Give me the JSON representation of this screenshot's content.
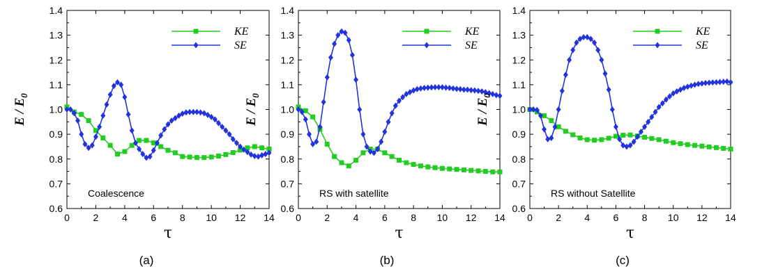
{
  "chart_data": [
    {
      "type": "line",
      "panel_label": "(a)",
      "annotation": "Coalescence",
      "xlabel": "τ",
      "ylabel": "E / E0",
      "xlim": [
        0,
        14
      ],
      "ylim": [
        0.6,
        1.4
      ],
      "xticks": [
        "0",
        "2",
        "4",
        "6",
        "8",
        "10",
        "12",
        "14"
      ],
      "yticks": [
        "0.6",
        "0.7",
        "0.8",
        "0.9",
        "1.0",
        "1.1",
        "1.2",
        "1.3",
        "1.4"
      ],
      "legend_position": "top-right",
      "grid": false,
      "series": [
        {
          "name": "KE",
          "color": "#22cc22",
          "marker": "square",
          "x": [
            0,
            0.5,
            1,
            1.5,
            2,
            2.5,
            3,
            3.5,
            4,
            4.5,
            5,
            5.5,
            6,
            6.5,
            7,
            7.5,
            8,
            8.5,
            9,
            9.5,
            10,
            10.5,
            11,
            11.5,
            12,
            12.5,
            13,
            13.5,
            14
          ],
          "y": [
            1.01,
            0.99,
            0.98,
            0.955,
            0.915,
            0.885,
            0.855,
            0.82,
            0.83,
            0.855,
            0.875,
            0.875,
            0.865,
            0.85,
            0.835,
            0.825,
            0.81,
            0.808,
            0.806,
            0.806,
            0.808,
            0.812,
            0.818,
            0.826,
            0.836,
            0.845,
            0.85,
            0.845,
            0.84
          ]
        },
        {
          "name": "SE",
          "color": "#2233dd",
          "marker": "diamond",
          "x": [
            0,
            0.25,
            0.5,
            0.75,
            1,
            1.25,
            1.5,
            1.75,
            2,
            2.25,
            2.5,
            2.75,
            3,
            3.25,
            3.5,
            3.75,
            4,
            4.25,
            4.5,
            4.75,
            5,
            5.25,
            5.5,
            5.75,
            6,
            6.25,
            6.5,
            6.75,
            7,
            7.25,
            7.5,
            7.75,
            8,
            8.25,
            8.5,
            8.75,
            9,
            9.25,
            9.5,
            9.75,
            10,
            10.25,
            10.5,
            10.75,
            11,
            11.25,
            11.5,
            11.75,
            12,
            12.25,
            12.5,
            12.75,
            13,
            13.25,
            13.5,
            13.75,
            14
          ],
          "y": [
            1.0,
            1.0,
            0.985,
            0.955,
            0.9,
            0.86,
            0.845,
            0.855,
            0.89,
            0.93,
            0.975,
            1.02,
            1.06,
            1.095,
            1.11,
            1.1,
            1.05,
            0.98,
            0.915,
            0.865,
            0.84,
            0.82,
            0.805,
            0.81,
            0.835,
            0.865,
            0.895,
            0.92,
            0.94,
            0.955,
            0.965,
            0.975,
            0.983,
            0.988,
            0.99,
            0.99,
            0.99,
            0.988,
            0.985,
            0.978,
            0.97,
            0.96,
            0.945,
            0.93,
            0.915,
            0.9,
            0.88,
            0.865,
            0.85,
            0.838,
            0.828,
            0.818,
            0.812,
            0.81,
            0.815,
            0.82,
            0.825
          ]
        }
      ]
    },
    {
      "type": "line",
      "panel_label": "(b)",
      "annotation": "RS with satellite",
      "xlabel": "τ",
      "ylabel": "E / E0",
      "xlim": [
        0,
        14
      ],
      "ylim": [
        0.6,
        1.4
      ],
      "xticks": [
        "0",
        "2",
        "4",
        "6",
        "8",
        "10",
        "12",
        "14"
      ],
      "yticks": [
        "0.6",
        "0.7",
        "0.8",
        "0.9",
        "1.0",
        "1.1",
        "1.2",
        "1.3",
        "1.4"
      ],
      "legend_position": "top-right",
      "grid": false,
      "series": [
        {
          "name": "KE",
          "color": "#22cc22",
          "marker": "square",
          "x": [
            0,
            0.5,
            1,
            1.5,
            2,
            2.5,
            3,
            3.5,
            4,
            4.5,
            5,
            5.5,
            6,
            6.5,
            7,
            7.5,
            8,
            8.5,
            9,
            9.5,
            10,
            10.5,
            11,
            11.5,
            12,
            12.5,
            13,
            13.5,
            14
          ],
          "y": [
            1.01,
            0.995,
            0.97,
            0.92,
            0.86,
            0.81,
            0.785,
            0.772,
            0.795,
            0.825,
            0.84,
            0.84,
            0.825,
            0.81,
            0.795,
            0.785,
            0.778,
            0.772,
            0.768,
            0.765,
            0.762,
            0.76,
            0.758,
            0.756,
            0.754,
            0.752,
            0.75,
            0.748,
            0.748
          ]
        },
        {
          "name": "SE",
          "color": "#2233dd",
          "marker": "diamond",
          "x": [
            0,
            0.25,
            0.5,
            0.75,
            1,
            1.25,
            1.5,
            1.75,
            2,
            2.25,
            2.5,
            2.75,
            3,
            3.25,
            3.5,
            3.75,
            4,
            4.25,
            4.5,
            4.75,
            5,
            5.25,
            5.5,
            5.75,
            6,
            6.25,
            6.5,
            6.75,
            7,
            7.25,
            7.5,
            7.75,
            8,
            8.25,
            8.5,
            8.75,
            9,
            9.25,
            9.5,
            9.75,
            10,
            10.25,
            10.5,
            10.75,
            11,
            11.25,
            11.5,
            11.75,
            12,
            12.25,
            12.5,
            12.75,
            13,
            13.25,
            13.5,
            13.75,
            14
          ],
          "y": [
            1.0,
            0.99,
            0.96,
            0.9,
            0.86,
            0.87,
            0.93,
            1.03,
            1.13,
            1.21,
            1.265,
            1.3,
            1.315,
            1.31,
            1.28,
            1.22,
            1.12,
            1.0,
            0.9,
            0.85,
            0.83,
            0.825,
            0.84,
            0.87,
            0.91,
            0.95,
            0.985,
            1.015,
            1.035,
            1.05,
            1.062,
            1.07,
            1.077,
            1.082,
            1.085,
            1.087,
            1.088,
            1.089,
            1.09,
            1.09,
            1.09,
            1.088,
            1.087,
            1.085,
            1.083,
            1.082,
            1.08,
            1.08,
            1.078,
            1.077,
            1.075,
            1.073,
            1.07,
            1.066,
            1.062,
            1.058,
            1.055
          ]
        }
      ]
    },
    {
      "type": "line",
      "panel_label": "(c)",
      "annotation": "RS without Satellite",
      "xlabel": "τ",
      "ylabel": "E / E0",
      "xlim": [
        0,
        14
      ],
      "ylim": [
        0.6,
        1.4
      ],
      "xticks": [
        "0",
        "2",
        "4",
        "6",
        "8",
        "10",
        "12",
        "14"
      ],
      "yticks": [
        "0.6",
        "0.7",
        "0.8",
        "0.9",
        "1.0",
        "1.1",
        "1.2",
        "1.3",
        "1.4"
      ],
      "legend_position": "top-right",
      "grid": false,
      "series": [
        {
          "name": "KE",
          "color": "#22cc22",
          "marker": "square",
          "x": [
            0,
            0.5,
            1,
            1.5,
            2,
            2.5,
            3,
            3.5,
            4,
            4.5,
            5,
            5.5,
            6,
            6.5,
            7,
            7.5,
            8,
            8.5,
            9,
            9.5,
            10,
            10.5,
            11,
            11.5,
            12,
            12.5,
            13,
            13.5,
            14
          ],
          "y": [
            1.0,
            0.99,
            0.975,
            0.955,
            0.93,
            0.912,
            0.898,
            0.885,
            0.878,
            0.876,
            0.878,
            0.884,
            0.892,
            0.896,
            0.897,
            0.893,
            0.888,
            0.883,
            0.878,
            0.872,
            0.866,
            0.862,
            0.858,
            0.855,
            0.852,
            0.849,
            0.846,
            0.843,
            0.84
          ]
        },
        {
          "name": "SE",
          "color": "#2233dd",
          "marker": "diamond",
          "x": [
            0,
            0.25,
            0.5,
            0.75,
            1,
            1.25,
            1.5,
            1.75,
            2,
            2.25,
            2.5,
            2.75,
            3,
            3.25,
            3.5,
            3.75,
            4,
            4.25,
            4.5,
            4.75,
            5,
            5.25,
            5.5,
            5.75,
            6,
            6.25,
            6.5,
            6.75,
            7,
            7.25,
            7.5,
            7.75,
            8,
            8.25,
            8.5,
            8.75,
            9,
            9.25,
            9.5,
            9.75,
            10,
            10.25,
            10.5,
            10.75,
            11,
            11.25,
            11.5,
            11.75,
            12,
            12.25,
            12.5,
            12.75,
            13,
            13.25,
            13.5,
            13.75,
            14
          ],
          "y": [
            1.0,
            1.0,
            0.998,
            0.975,
            0.92,
            0.88,
            0.885,
            0.93,
            1.0,
            1.075,
            1.14,
            1.2,
            1.24,
            1.27,
            1.285,
            1.292,
            1.292,
            1.285,
            1.27,
            1.24,
            1.2,
            1.145,
            1.08,
            1.0,
            0.93,
            0.88,
            0.855,
            0.85,
            0.855,
            0.87,
            0.89,
            0.91,
            0.93,
            0.95,
            0.97,
            0.99,
            1.01,
            1.025,
            1.04,
            1.053,
            1.065,
            1.073,
            1.08,
            1.087,
            1.092,
            1.096,
            1.1,
            1.103,
            1.105,
            1.107,
            1.108,
            1.109,
            1.11,
            1.111,
            1.112,
            1.113,
            1.11
          ]
        }
      ]
    }
  ]
}
